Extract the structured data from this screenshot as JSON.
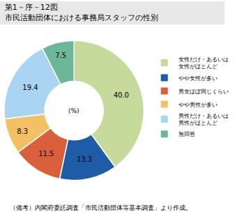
{
  "chart_data": {
    "type": "pie",
    "title": "第1－序－12図　市民活動団体における事務局スタッフの性別",
    "categories": [
      "女性だけ・あるいは女性がほとんど",
      "やや女性が多い",
      "男女ほぼ同じくらい",
      "やや男性が多い",
      "男性だけ・あるいは男性がほとんど",
      "無回答"
    ],
    "values": [
      40.0,
      13.3,
      11.5,
      8.3,
      19.4,
      7.5
    ],
    "value_labels": [
      "40.0",
      "13.3",
      "11.5",
      "8.3",
      "19.4",
      "7.5"
    ],
    "colors": [
      "#c6da9c",
      "#1f5ca8",
      "#d9603b",
      "#f4c064",
      "#a9d4f2",
      "#6cb79a"
    ],
    "data_labels": true,
    "legend": "right",
    "center_label": "(%)",
    "note": "（備考）内閣府委託調査「市民活動団体等基本調査」より作成。"
  }
}
